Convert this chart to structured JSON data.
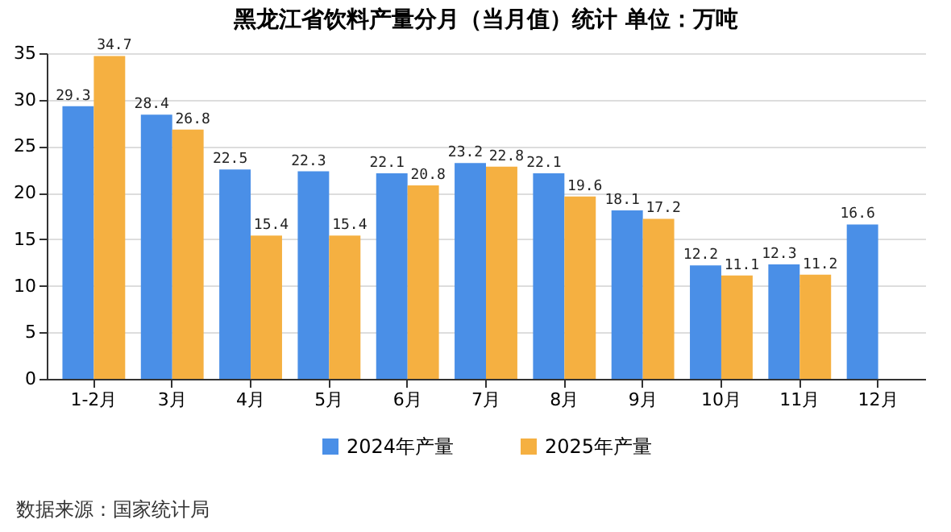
{
  "chart_data": {
    "type": "bar",
    "title": "黑龙江省饮料产量分月（当月值）统计  单位：万吨",
    "categories": [
      "1-2月",
      "3月",
      "4月",
      "5月",
      "6月",
      "7月",
      "8月",
      "9月",
      "10月",
      "11月",
      "12月"
    ],
    "series": [
      {
        "name": "2024年产量",
        "color": "#4a8fe7",
        "values": [
          29.3,
          28.4,
          22.5,
          22.3,
          22.1,
          23.2,
          22.1,
          18.1,
          12.2,
          12.3,
          16.6
        ]
      },
      {
        "name": "2025年产量",
        "color": "#f5b041",
        "values": [
          34.7,
          26.8,
          15.4,
          15.4,
          20.8,
          22.8,
          19.6,
          17.2,
          11.1,
          11.2,
          null
        ]
      }
    ],
    "ylim": [
      0,
      35
    ],
    "yticks": [
      0,
      5,
      10,
      15,
      20,
      25,
      30,
      35
    ],
    "grid": "y",
    "legend": "bottom",
    "data_labels": true,
    "annotations": [
      "数据来源：国家统计局"
    ]
  }
}
